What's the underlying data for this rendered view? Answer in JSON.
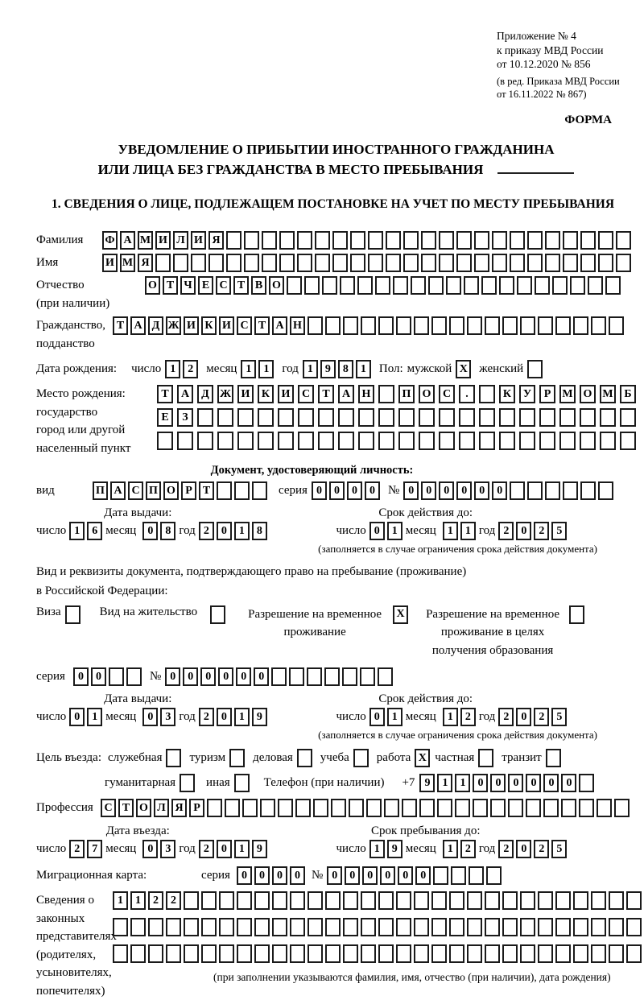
{
  "header": {
    "appendix": [
      "Приложение № 4",
      "к приказу МВД России",
      "от 10.12.2020 № 856"
    ],
    "edition": [
      "(в ред. Приказа МВД России",
      "от 16.11.2022 № 867)"
    ],
    "form_label": "ФОРМА"
  },
  "title": {
    "line1": "УВЕДОМЛЕНИЕ О ПРИБЫТИИ ИНОСТРАННОГО ГРАЖДАНИНА",
    "line2": "ИЛИ ЛИЦА БЕЗ ГРАЖДАНСТВА В МЕСТО ПРЕБЫВАНИЯ"
  },
  "section1_heading": "1. СВЕДЕНИЯ О ЛИЦЕ, ПОДЛЕЖАЩЕМ ПОСТАНОВКЕ НА УЧЕТ ПО МЕСТУ ПРЕБЫВАНИЯ",
  "misc": {
    "day_label": "число",
    "month_label": "месяц",
    "year_label": "год",
    "validity_note": "(заполняется в случае ограничения срока действия документа)"
  },
  "person": {
    "surname": {
      "label": "Фамилия",
      "value": "ФАМИЛИЯ",
      "count": 30
    },
    "name": {
      "label": "Имя",
      "value": "ИМЯ",
      "count": 30
    },
    "patronymic": {
      "label1": "Отчество",
      "label2": "(при наличии)",
      "value": "ОТЧЕСТВО",
      "count": 27
    },
    "citizenship": {
      "label1": "Гражданство,",
      "label2": "подданство",
      "value": "ТАДЖИКИСТАН",
      "count": 29
    },
    "birth_date": {
      "label": "Дата рождения:",
      "day": "12",
      "month": "11",
      "year": "1981"
    },
    "sex": {
      "label": "Пол:",
      "male": "мужской",
      "male_mark": "X",
      "female": "женский",
      "female_mark": ""
    },
    "birth_place": {
      "label1": "Место рождения:",
      "label2": "государство",
      "label3": "город или другой",
      "label4": "населенный пункт",
      "row1": {
        "value": "ТАДЖИКИСТАН ПОС. КУРМОМБ",
        "count": 24
      },
      "row2": {
        "value": "ЕЗ",
        "count": 24
      },
      "row3": {
        "value": "",
        "count": 24
      }
    }
  },
  "identity_doc": {
    "heading": "Документ, удостоверяющий личность:",
    "type": {
      "label": "вид",
      "value": "ПАСПОРТ",
      "count": 10
    },
    "series": {
      "label": "серия",
      "value": "0000",
      "count": 4
    },
    "number": {
      "label": "№",
      "value": "000000",
      "count": 12
    },
    "issue_heading": "Дата выдачи:",
    "issue": {
      "day": "16",
      "month": "08",
      "year": "2018"
    },
    "valid_heading": "Срок действия до:",
    "valid": {
      "day": "01",
      "month": "11",
      "year": "2025"
    }
  },
  "residence": {
    "intro1": "Вид и реквизиты документа, подтверждающего право на пребывание (проживание)",
    "intro2": "в Российской Федерации:",
    "visa": {
      "label": "Виза",
      "mark": ""
    },
    "permit": {
      "label": "Вид на жительство",
      "mark": ""
    },
    "temp": {
      "label1": "Разрешение на временное",
      "label2": "проживание",
      "mark": "X"
    },
    "temp_edu": {
      "label1": "Разрешение на временное",
      "label2": "проживание в целях",
      "label3": "получения образования",
      "mark": ""
    },
    "series": {
      "label": "серия",
      "value": "00",
      "count": 4
    },
    "number": {
      "label": "№",
      "value": "000000",
      "count": 13
    },
    "issue_heading": "Дата выдачи:",
    "issue": {
      "day": "01",
      "month": "03",
      "year": "2019"
    },
    "valid_heading": "Срок действия до:",
    "valid": {
      "day": "01",
      "month": "12",
      "year": "2025"
    }
  },
  "purpose": {
    "label": "Цель въезда:",
    "options": [
      {
        "label": "служебная",
        "mark": ""
      },
      {
        "label": "туризм",
        "mark": ""
      },
      {
        "label": "деловая",
        "mark": ""
      },
      {
        "label": "учеба",
        "mark": ""
      },
      {
        "label": "работа",
        "mark": "X"
      },
      {
        "label": "частная",
        "mark": ""
      },
      {
        "label": "транзит",
        "mark": ""
      }
    ],
    "options2": [
      {
        "label": "гуманитарная",
        "mark": ""
      },
      {
        "label": "иная",
        "mark": ""
      }
    ],
    "phone_label": "Телефон (при наличии)",
    "phone_prefix": "+7",
    "phone": {
      "value": "911000000",
      "count": 10
    },
    "profession": {
      "label": "Профессия",
      "value": "СТОЛЯР",
      "count": 30
    }
  },
  "entry": {
    "date_heading": "Дата въезда:",
    "date": {
      "day": "27",
      "month": "03",
      "year": "2019"
    },
    "stay_heading": "Срок пребывания до:",
    "stay": {
      "day": "19",
      "month": "12",
      "year": "2025"
    }
  },
  "migration_card": {
    "label": "Миграционная карта:",
    "series_label": "серия",
    "series": {
      "value": "0000",
      "count": 4
    },
    "number_label": "№",
    "number": {
      "value": "000000",
      "count": 10
    }
  },
  "representatives": {
    "label_lines": [
      "Сведения о",
      "законных",
      "представителях",
      "(родителях,",
      "усыновителях,",
      "попечителях)"
    ],
    "row1": {
      "value": "1122",
      "count": 30
    },
    "row2": {
      "value": "",
      "count": 30
    },
    "row3": {
      "value": "",
      "count": 30
    },
    "note": "(при заполнении указываются фамилия, имя, отчество (при наличии), дата рождения)"
  }
}
